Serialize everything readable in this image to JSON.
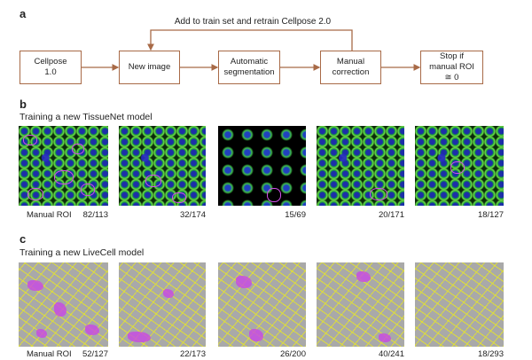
{
  "panel_a": {
    "label": "a",
    "loop_label": "Add to train set and retrain Cellpose 2.0",
    "boxes": [
      "Cellpose\n1.0",
      "New image",
      "Automatic\nsegmentation",
      "Manual\ncorrection",
      "Stop if\nmanual ROI\n≅ 0"
    ],
    "arrow_color": "#a86a47"
  },
  "panel_b": {
    "label": "b",
    "title": "Training a new TissueNet model",
    "row_label": "Manual ROI",
    "counts": [
      "82/113",
      "32/174",
      "15/69",
      "20/171",
      "18/127"
    ]
  },
  "panel_c": {
    "label": "c",
    "title": "Training a new LiveCell model",
    "row_label": "Manual ROI",
    "counts": [
      "52/127",
      "22/173",
      "26/200",
      "40/241",
      "18/293"
    ]
  },
  "colors": {
    "manual_roi": "#d050e8",
    "auto_roi": "#e6e628",
    "nuclei": "#1c2fa8",
    "membrane": "#6fe04a"
  }
}
